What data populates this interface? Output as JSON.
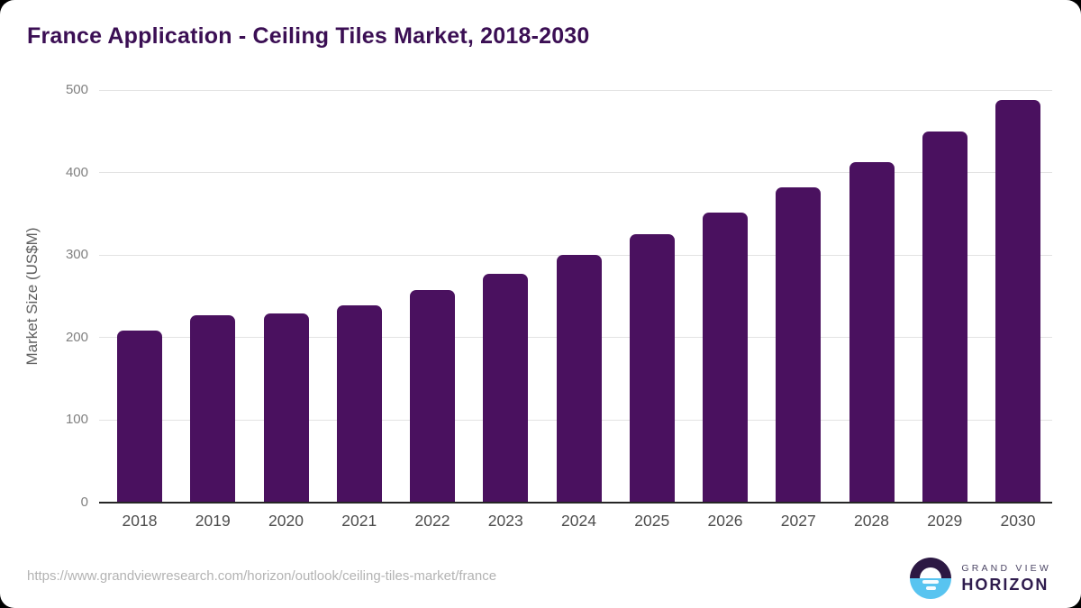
{
  "header": {
    "title": "France Application - Ceiling Tiles Market, 2018-2030"
  },
  "chart_data": {
    "type": "bar",
    "title": "France Application - Ceiling Tiles Market, 2018-2030",
    "categories": [
      "2018",
      "2019",
      "2020",
      "2021",
      "2022",
      "2023",
      "2024",
      "2025",
      "2026",
      "2027",
      "2028",
      "2029",
      "2030"
    ],
    "values": [
      209,
      227,
      229,
      239,
      258,
      277,
      300,
      325,
      352,
      382,
      413,
      450,
      488
    ],
    "xlabel": "",
    "ylabel": "Market Size (US$M)",
    "ylim": [
      0,
      500
    ],
    "yticks": [
      0,
      100,
      200,
      300,
      400,
      500
    ],
    "grid": "horizontal",
    "legend": "none"
  },
  "footer": {
    "source_url": "https://www.grandviewresearch.com/horizon/outlook/ceiling-tiles-market/france",
    "logo": {
      "line1": "GRAND VIEW",
      "line2": "HORIZON"
    }
  },
  "colors": {
    "title_text": "#3b0f54",
    "bar_fill": "#4a115f",
    "axis_line": "#262626",
    "grid_line": "#e3e3e3",
    "ytick_label": "#808080",
    "xtick_label": "#4d4d4d",
    "yaxis_title": "#5f5f5f",
    "url_text": "#b3b3b3",
    "logo_dark": "#2c1843",
    "logo_blue": "#58c4f0",
    "logo_line1_text": "#4d4766",
    "logo_line2_text": "#2f1c4e"
  }
}
